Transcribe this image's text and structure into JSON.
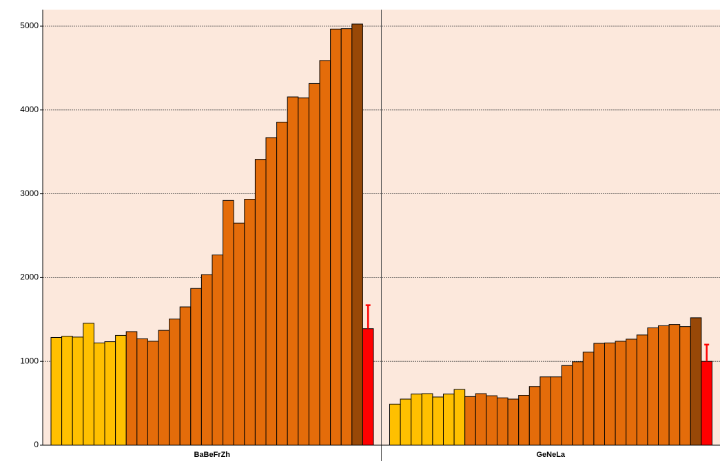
{
  "chart_data": {
    "type": "bar",
    "ylim": [
      0,
      5000
    ],
    "yticks": [
      0,
      1000,
      2000,
      3000,
      4000,
      5000
    ],
    "grid": true,
    "background": "#fce8dc",
    "error_color": "#ff0000",
    "groups": [
      {
        "name": "BaBeFrZh",
        "values": [
          1285,
          1300,
          1290,
          1455,
          1220,
          1235,
          1310,
          1355,
          1270,
          1240,
          1370,
          1505,
          1650,
          1870,
          2035,
          2270,
          2920,
          2650,
          2935,
          3410,
          3670,
          3855,
          4155,
          4145,
          4315,
          4590,
          4965,
          4970,
          5025,
          1390
        ],
        "errors": [
          null,
          null,
          null,
          null,
          null,
          null,
          null,
          null,
          null,
          null,
          null,
          null,
          null,
          null,
          null,
          null,
          null,
          null,
          null,
          null,
          null,
          null,
          null,
          null,
          null,
          null,
          null,
          null,
          null,
          280
        ],
        "colors": [
          "#ffc000",
          "#ffc000",
          "#ffc000",
          "#ffc000",
          "#ffc000",
          "#ffc000",
          "#ffc000",
          "#e46c0a",
          "#e46c0a",
          "#e46c0a",
          "#e46c0a",
          "#e46c0a",
          "#e46c0a",
          "#e46c0a",
          "#e46c0a",
          "#e46c0a",
          "#e46c0a",
          "#e46c0a",
          "#e46c0a",
          "#e46c0a",
          "#e46c0a",
          "#e46c0a",
          "#e46c0a",
          "#e46c0a",
          "#e46c0a",
          "#e46c0a",
          "#e46c0a",
          "#e46c0a",
          "#984807",
          "#ff0000"
        ]
      },
      {
        "name": "GeNeLa",
        "values": [
          490,
          550,
          610,
          615,
          575,
          610,
          665,
          580,
          615,
          590,
          565,
          550,
          595,
          700,
          815,
          815,
          950,
          995,
          1110,
          1215,
          1220,
          1240,
          1265,
          1315,
          1400,
          1425,
          1440,
          1415,
          1520,
          1000
        ],
        "errors": [
          null,
          null,
          null,
          null,
          null,
          null,
          null,
          null,
          null,
          null,
          null,
          null,
          null,
          null,
          null,
          null,
          null,
          null,
          null,
          null,
          null,
          null,
          null,
          null,
          null,
          null,
          null,
          null,
          null,
          200
        ],
        "colors": [
          "#ffc000",
          "#ffc000",
          "#ffc000",
          "#ffc000",
          "#ffc000",
          "#ffc000",
          "#ffc000",
          "#e46c0a",
          "#e46c0a",
          "#e46c0a",
          "#e46c0a",
          "#e46c0a",
          "#e46c0a",
          "#e46c0a",
          "#e46c0a",
          "#e46c0a",
          "#e46c0a",
          "#e46c0a",
          "#e46c0a",
          "#e46c0a",
          "#e46c0a",
          "#e46c0a",
          "#e46c0a",
          "#e46c0a",
          "#e46c0a",
          "#e46c0a",
          "#e46c0a",
          "#e46c0a",
          "#984807",
          "#ff0000"
        ]
      }
    ]
  }
}
